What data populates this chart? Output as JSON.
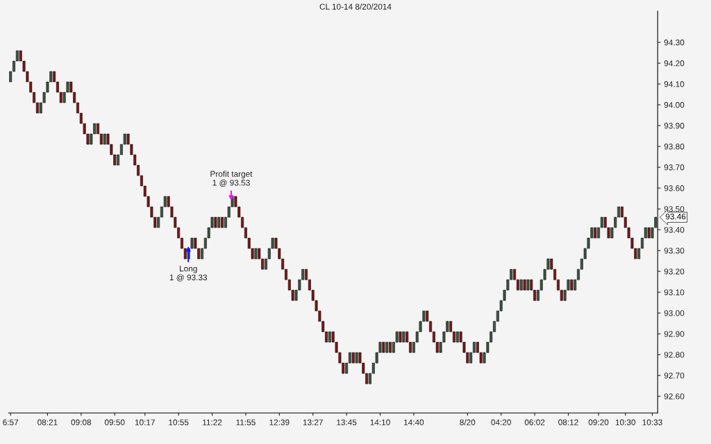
{
  "chart_data": {
    "type": "candlestick",
    "title": "CL 10-14 8/20/2014",
    "categories": [
      "6:57",
      null,
      null,
      null,
      null,
      null,
      null,
      null,
      null,
      null,
      null,
      "08:21",
      null,
      null,
      null,
      null,
      null,
      null,
      null,
      null,
      null,
      "09:08",
      null,
      null,
      null,
      null,
      null,
      null,
      null,
      null,
      null,
      "09:50",
      null,
      null,
      null,
      null,
      null,
      null,
      null,
      null,
      "10:17",
      null,
      null,
      null,
      null,
      null,
      null,
      null,
      null,
      null,
      "10:55",
      null,
      null,
      null,
      null,
      null,
      null,
      null,
      null,
      null,
      "11:22",
      null,
      null,
      null,
      null,
      null,
      null,
      null,
      null,
      null,
      "11:55",
      null,
      null,
      null,
      null,
      null,
      null,
      null,
      null,
      null,
      "12:39",
      null,
      null,
      null,
      null,
      null,
      null,
      null,
      null,
      null,
      "13:27",
      null,
      null,
      null,
      null,
      null,
      null,
      null,
      null,
      null,
      "13:45",
      null,
      null,
      null,
      null,
      null,
      null,
      null,
      null,
      null,
      "14:10",
      null,
      null,
      null,
      null,
      null,
      null,
      null,
      null,
      null,
      "14:40",
      null,
      null,
      null,
      null,
      null,
      null,
      null,
      null,
      null,
      null,
      null,
      null,
      null,
      null,
      null,
      "8/20",
      null,
      null,
      null,
      null,
      null,
      null,
      null,
      null,
      null,
      "04:20",
      null,
      null,
      null,
      null,
      null,
      null,
      null,
      null,
      null,
      "06:02",
      null,
      null,
      null,
      null,
      null,
      null,
      null,
      null,
      null,
      "08:12",
      null,
      null,
      null,
      null,
      null,
      null,
      null,
      null,
      "09:20",
      null,
      null,
      null,
      null,
      null,
      null,
      null,
      "10:30",
      null,
      null,
      null,
      null,
      null,
      null,
      null,
      "10:33",
      null
    ],
    "ohlc": [
      [
        94.11,
        94.16,
        94.11,
        94.16
      ],
      [
        94.16,
        94.21,
        94.16,
        94.21
      ],
      [
        94.21,
        94.26,
        94.21,
        94.26
      ],
      [
        94.26,
        94.26,
        94.21,
        94.21
      ],
      [
        94.21,
        94.21,
        94.16,
        94.16
      ],
      [
        94.16,
        94.16,
        94.11,
        94.11
      ],
      [
        94.11,
        94.11,
        94.06,
        94.06
      ],
      [
        94.06,
        94.06,
        94.01,
        94.01
      ],
      [
        94.01,
        94.01,
        93.96,
        93.96
      ],
      [
        93.96,
        94.01,
        93.96,
        94.01
      ],
      [
        94.01,
        94.06,
        94.01,
        94.06
      ],
      [
        94.06,
        94.11,
        94.06,
        94.11
      ],
      [
        94.11,
        94.16,
        94.11,
        94.16
      ],
      [
        94.16,
        94.16,
        94.11,
        94.11
      ],
      [
        94.11,
        94.11,
        94.06,
        94.06
      ],
      [
        94.06,
        94.06,
        94.01,
        94.01
      ],
      [
        94.01,
        94.06,
        94.01,
        94.06
      ],
      [
        94.06,
        94.11,
        94.06,
        94.11
      ],
      [
        94.11,
        94.11,
        94.06,
        94.06
      ],
      [
        94.06,
        94.06,
        94.01,
        94.01
      ],
      [
        94.01,
        94.01,
        93.96,
        93.96
      ],
      [
        93.96,
        93.96,
        93.91,
        93.91
      ],
      [
        93.91,
        93.91,
        93.86,
        93.86
      ],
      [
        93.86,
        93.86,
        93.81,
        93.81
      ],
      [
        93.81,
        93.86,
        93.81,
        93.86
      ],
      [
        93.86,
        93.91,
        93.86,
        93.91
      ],
      [
        93.91,
        93.91,
        93.86,
        93.86
      ],
      [
        93.86,
        93.86,
        93.81,
        93.81
      ],
      [
        93.81,
        93.86,
        93.81,
        93.86
      ],
      [
        93.86,
        93.86,
        93.81,
        93.81
      ],
      [
        93.81,
        93.81,
        93.76,
        93.76
      ],
      [
        93.76,
        93.76,
        93.71,
        93.71
      ],
      [
        93.71,
        93.76,
        93.71,
        93.76
      ],
      [
        93.76,
        93.81,
        93.76,
        93.81
      ],
      [
        93.81,
        93.86,
        93.81,
        93.86
      ],
      [
        93.86,
        93.86,
        93.81,
        93.81
      ],
      [
        93.81,
        93.81,
        93.76,
        93.76
      ],
      [
        93.76,
        93.76,
        93.71,
        93.71
      ],
      [
        93.71,
        93.71,
        93.66,
        93.66
      ],
      [
        93.66,
        93.66,
        93.61,
        93.61
      ],
      [
        93.61,
        93.61,
        93.56,
        93.56
      ],
      [
        93.56,
        93.56,
        93.51,
        93.51
      ],
      [
        93.51,
        93.51,
        93.46,
        93.46
      ],
      [
        93.46,
        93.46,
        93.41,
        93.41
      ],
      [
        93.41,
        93.46,
        93.41,
        93.46
      ],
      [
        93.46,
        93.51,
        93.46,
        93.51
      ],
      [
        93.51,
        93.56,
        93.51,
        93.56
      ],
      [
        93.56,
        93.56,
        93.51,
        93.51
      ],
      [
        93.51,
        93.51,
        93.46,
        93.46
      ],
      [
        93.46,
        93.46,
        93.41,
        93.41
      ],
      [
        93.41,
        93.41,
        93.36,
        93.36
      ],
      [
        93.36,
        93.36,
        93.31,
        93.31
      ],
      [
        93.31,
        93.31,
        93.26,
        93.26
      ],
      [
        93.26,
        93.31,
        93.26,
        93.31
      ],
      [
        93.31,
        93.36,
        93.31,
        93.36
      ],
      [
        93.36,
        93.36,
        93.31,
        93.31
      ],
      [
        93.31,
        93.31,
        93.26,
        93.26
      ],
      [
        93.26,
        93.31,
        93.26,
        93.31
      ],
      [
        93.31,
        93.36,
        93.31,
        93.36
      ],
      [
        93.36,
        93.41,
        93.36,
        93.41
      ],
      [
        93.41,
        93.46,
        93.41,
        93.46
      ],
      [
        93.46,
        93.46,
        93.41,
        93.41
      ],
      [
        93.41,
        93.46,
        93.41,
        93.46
      ],
      [
        93.46,
        93.46,
        93.41,
        93.41
      ],
      [
        93.41,
        93.46,
        93.41,
        93.46
      ],
      [
        93.46,
        93.51,
        93.46,
        93.51
      ],
      [
        93.51,
        93.56,
        93.51,
        93.56
      ],
      [
        93.56,
        93.56,
        93.51,
        93.51
      ],
      [
        93.51,
        93.51,
        93.46,
        93.46
      ],
      [
        93.46,
        93.46,
        93.41,
        93.41
      ],
      [
        93.41,
        93.41,
        93.36,
        93.36
      ],
      [
        93.36,
        93.36,
        93.31,
        93.31
      ],
      [
        93.31,
        93.31,
        93.26,
        93.26
      ],
      [
        93.26,
        93.31,
        93.26,
        93.31
      ],
      [
        93.31,
        93.31,
        93.26,
        93.26
      ],
      [
        93.26,
        93.26,
        93.21,
        93.21
      ],
      [
        93.21,
        93.26,
        93.21,
        93.26
      ],
      [
        93.26,
        93.31,
        93.26,
        93.31
      ],
      [
        93.31,
        93.36,
        93.31,
        93.36
      ],
      [
        93.36,
        93.36,
        93.31,
        93.31
      ],
      [
        93.31,
        93.31,
        93.26,
        93.26
      ],
      [
        93.26,
        93.26,
        93.21,
        93.21
      ],
      [
        93.21,
        93.21,
        93.16,
        93.16
      ],
      [
        93.16,
        93.16,
        93.11,
        93.11
      ],
      [
        93.11,
        93.11,
        93.06,
        93.06
      ],
      [
        93.06,
        93.11,
        93.06,
        93.11
      ],
      [
        93.11,
        93.16,
        93.11,
        93.16
      ],
      [
        93.16,
        93.21,
        93.16,
        93.21
      ],
      [
        93.21,
        93.21,
        93.16,
        93.16
      ],
      [
        93.16,
        93.16,
        93.11,
        93.11
      ],
      [
        93.11,
        93.11,
        93.06,
        93.06
      ],
      [
        93.06,
        93.06,
        93.01,
        93.01
      ],
      [
        93.01,
        93.01,
        92.96,
        92.96
      ],
      [
        92.96,
        92.96,
        92.91,
        92.91
      ],
      [
        92.91,
        92.91,
        92.86,
        92.86
      ],
      [
        92.86,
        92.91,
        92.86,
        92.91
      ],
      [
        92.91,
        92.91,
        92.86,
        92.86
      ],
      [
        92.86,
        92.86,
        92.81,
        92.81
      ],
      [
        92.81,
        92.81,
        92.76,
        92.76
      ],
      [
        92.76,
        92.76,
        92.71,
        92.71
      ],
      [
        92.71,
        92.76,
        92.71,
        92.76
      ],
      [
        92.76,
        92.81,
        92.76,
        92.81
      ],
      [
        92.81,
        92.81,
        92.76,
        92.76
      ],
      [
        92.76,
        92.81,
        92.76,
        92.81
      ],
      [
        92.81,
        92.81,
        92.76,
        92.76
      ],
      [
        92.76,
        92.76,
        92.71,
        92.71
      ],
      [
        92.71,
        92.71,
        92.66,
        92.66
      ],
      [
        92.66,
        92.71,
        92.66,
        92.71
      ],
      [
        92.71,
        92.76,
        92.71,
        92.76
      ],
      [
        92.76,
        92.81,
        92.76,
        92.81
      ],
      [
        92.81,
        92.86,
        92.81,
        92.86
      ],
      [
        92.86,
        92.86,
        92.81,
        92.81
      ],
      [
        92.81,
        92.86,
        92.81,
        92.86
      ],
      [
        92.86,
        92.86,
        92.81,
        92.81
      ],
      [
        92.81,
        92.86,
        92.81,
        92.86
      ],
      [
        92.86,
        92.91,
        92.86,
        92.91
      ],
      [
        92.91,
        92.91,
        92.86,
        92.86
      ],
      [
        92.86,
        92.91,
        92.86,
        92.91
      ],
      [
        92.91,
        92.91,
        92.86,
        92.86
      ],
      [
        92.86,
        92.86,
        92.81,
        92.81
      ],
      [
        92.81,
        92.86,
        92.81,
        92.86
      ],
      [
        92.86,
        92.91,
        92.86,
        92.91
      ],
      [
        92.91,
        92.96,
        92.91,
        92.96
      ],
      [
        92.96,
        93.01,
        92.96,
        93.01
      ],
      [
        93.01,
        93.01,
        92.96,
        92.96
      ],
      [
        92.96,
        92.96,
        92.91,
        92.91
      ],
      [
        92.91,
        92.91,
        92.86,
        92.86
      ],
      [
        92.86,
        92.86,
        92.81,
        92.81
      ],
      [
        92.81,
        92.86,
        92.81,
        92.86
      ],
      [
        92.86,
        92.91,
        92.86,
        92.91
      ],
      [
        92.91,
        92.96,
        92.91,
        92.96
      ],
      [
        92.96,
        92.96,
        92.91,
        92.91
      ],
      [
        92.91,
        92.91,
        92.86,
        92.86
      ],
      [
        92.86,
        92.91,
        92.86,
        92.91
      ],
      [
        92.91,
        92.91,
        92.86,
        92.86
      ],
      [
        92.86,
        92.86,
        92.81,
        92.81
      ],
      [
        92.81,
        92.81,
        92.76,
        92.76
      ],
      [
        92.76,
        92.81,
        92.76,
        92.81
      ],
      [
        92.81,
        92.86,
        92.81,
        92.86
      ],
      [
        92.86,
        92.86,
        92.81,
        92.81
      ],
      [
        92.81,
        92.81,
        92.76,
        92.76
      ],
      [
        92.76,
        92.81,
        92.76,
        92.81
      ],
      [
        92.81,
        92.86,
        92.81,
        92.86
      ],
      [
        92.86,
        92.91,
        92.86,
        92.91
      ],
      [
        92.91,
        92.96,
        92.91,
        92.96
      ],
      [
        92.96,
        93.01,
        92.96,
        93.01
      ],
      [
        93.01,
        93.06,
        93.01,
        93.06
      ],
      [
        93.06,
        93.11,
        93.06,
        93.11
      ],
      [
        93.11,
        93.16,
        93.11,
        93.16
      ],
      [
        93.16,
        93.21,
        93.16,
        93.21
      ],
      [
        93.21,
        93.21,
        93.16,
        93.16
      ],
      [
        93.16,
        93.16,
        93.11,
        93.11
      ],
      [
        93.11,
        93.16,
        93.11,
        93.16
      ],
      [
        93.16,
        93.16,
        93.11,
        93.11
      ],
      [
        93.11,
        93.16,
        93.11,
        93.16
      ],
      [
        93.16,
        93.16,
        93.11,
        93.11
      ],
      [
        93.11,
        93.11,
        93.06,
        93.06
      ],
      [
        93.06,
        93.11,
        93.06,
        93.11
      ],
      [
        93.11,
        93.16,
        93.11,
        93.16
      ],
      [
        93.16,
        93.21,
        93.16,
        93.21
      ],
      [
        93.21,
        93.26,
        93.21,
        93.26
      ],
      [
        93.26,
        93.26,
        93.21,
        93.21
      ],
      [
        93.21,
        93.21,
        93.16,
        93.16
      ],
      [
        93.16,
        93.16,
        93.11,
        93.11
      ],
      [
        93.11,
        93.11,
        93.06,
        93.06
      ],
      [
        93.06,
        93.11,
        93.06,
        93.11
      ],
      [
        93.11,
        93.16,
        93.11,
        93.16
      ],
      [
        93.16,
        93.16,
        93.11,
        93.11
      ],
      [
        93.11,
        93.16,
        93.11,
        93.16
      ],
      [
        93.16,
        93.21,
        93.16,
        93.21
      ],
      [
        93.21,
        93.26,
        93.21,
        93.26
      ],
      [
        93.26,
        93.31,
        93.26,
        93.31
      ],
      [
        93.31,
        93.36,
        93.31,
        93.36
      ],
      [
        93.36,
        93.41,
        93.36,
        93.41
      ],
      [
        93.41,
        93.41,
        93.36,
        93.36
      ],
      [
        93.36,
        93.41,
        93.36,
        93.41
      ],
      [
        93.41,
        93.46,
        93.41,
        93.46
      ],
      [
        93.46,
        93.46,
        93.41,
        93.41
      ],
      [
        93.41,
        93.41,
        93.36,
        93.36
      ],
      [
        93.36,
        93.41,
        93.36,
        93.41
      ],
      [
        93.41,
        93.46,
        93.41,
        93.46
      ],
      [
        93.46,
        93.51,
        93.46,
        93.51
      ],
      [
        93.51,
        93.51,
        93.46,
        93.46
      ],
      [
        93.46,
        93.46,
        93.41,
        93.41
      ],
      [
        93.41,
        93.41,
        93.36,
        93.36
      ],
      [
        93.36,
        93.36,
        93.31,
        93.31
      ],
      [
        93.31,
        93.31,
        93.26,
        93.26
      ],
      [
        93.26,
        93.31,
        93.26,
        93.31
      ],
      [
        93.31,
        93.36,
        93.31,
        93.36
      ],
      [
        93.36,
        93.41,
        93.36,
        93.41
      ],
      [
        93.41,
        93.41,
        93.36,
        93.36
      ],
      [
        93.36,
        93.41,
        93.36,
        93.41
      ],
      [
        93.41,
        93.46,
        93.41,
        93.46
      ]
    ],
    "ylim": [
      92.52,
      94.45
    ],
    "yticks": [
      {
        "value": 92.6,
        "label": "92.60"
      },
      {
        "value": 92.7,
        "label": "92.70"
      },
      {
        "value": 92.8,
        "label": "92.80"
      },
      {
        "value": 92.9,
        "label": "92.90"
      },
      {
        "value": 93.0,
        "label": "93.00"
      },
      {
        "value": 93.1,
        "label": "93.10"
      },
      {
        "value": 93.2,
        "label": "93.20"
      },
      {
        "value": 93.3,
        "label": "93.30"
      },
      {
        "value": 93.4,
        "label": "93.40"
      },
      {
        "value": 93.5,
        "label": "93.50"
      },
      {
        "value": 93.6,
        "label": "93.60"
      },
      {
        "value": 93.7,
        "label": "93.70"
      },
      {
        "value": 93.8,
        "label": "93.80"
      },
      {
        "value": 93.9,
        "label": "93.90"
      },
      {
        "value": 94.0,
        "label": "94.00"
      },
      {
        "value": 94.1,
        "label": "94.10"
      },
      {
        "value": 94.2,
        "label": "94.20"
      },
      {
        "value": 94.3,
        "label": "94.30"
      }
    ],
    "grid": false,
    "legend": false,
    "annotations": [
      {
        "text": "Long\n1 @ 93.33",
        "y": 93.33
      },
      {
        "text": "Profit target\n1 @ 93.53",
        "y": 93.53
      },
      "93.46"
    ]
  }
}
